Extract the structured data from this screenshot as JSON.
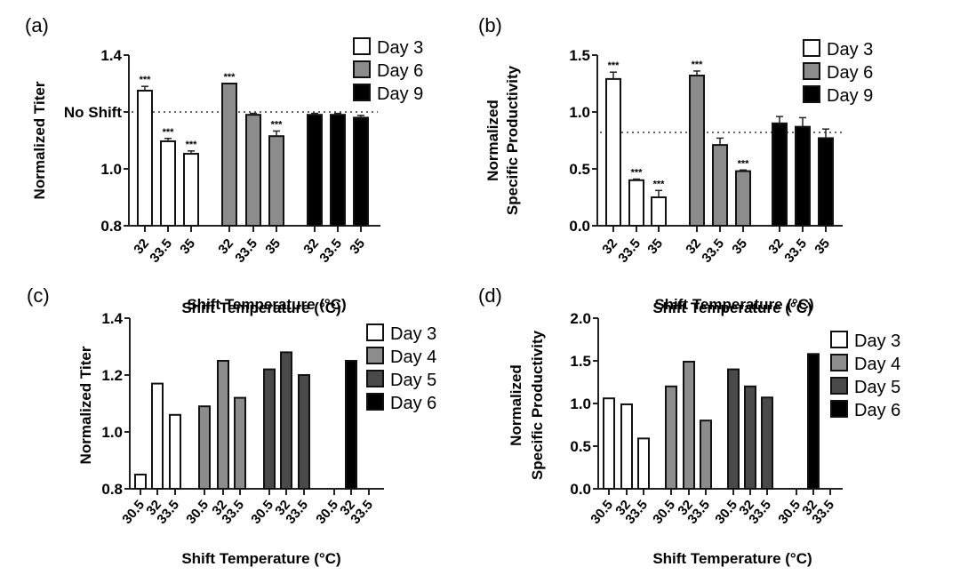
{
  "chart_data": [
    {
      "id": "a",
      "panel_label": "(a)",
      "type": "bar",
      "ylabel": "Normalized Titer",
      "xlabel": "Shift Temperature (°C)",
      "ylim": [
        0.8,
        1.4
      ],
      "yticks": [
        "0.8",
        "1.0",
        "No Shift",
        "1.4"
      ],
      "ytick_values": [
        0.8,
        1.0,
        1.2,
        1.4
      ],
      "reference_line": {
        "label": "No Shift",
        "value": 1.2
      },
      "categories": [
        "32",
        "33.5",
        "35"
      ],
      "series": [
        {
          "name": "Day 3",
          "color": "#ffffff",
          "values": [
            1.275,
            1.097,
            1.053
          ],
          "errors": [
            0.015,
            0.01,
            0.01
          ],
          "significance": [
            "***",
            "***",
            "***"
          ]
        },
        {
          "name": "Day 6",
          "color": "#8c8c8c",
          "values": [
            1.3,
            1.19,
            1.115
          ],
          "errors": [
            0.0,
            0.005,
            0.018
          ],
          "significance": [
            "***",
            "",
            "***"
          ]
        },
        {
          "name": "Day 9",
          "color": "#000000",
          "values": [
            1.19,
            1.19,
            1.18
          ],
          "errors": [
            0.005,
            0.005,
            0.008
          ],
          "significance": [
            "",
            "",
            ""
          ]
        }
      ],
      "legend": "top-right"
    },
    {
      "id": "b",
      "panel_label": "(b)",
      "type": "bar",
      "ylabel": [
        "Normalized",
        "Specific Productivity"
      ],
      "xlabel": "Shift Temperature (°C)",
      "ylim": [
        0.0,
        1.5
      ],
      "yticks": [
        "0.0",
        "0.5",
        "1.0",
        "1.5"
      ],
      "ytick_values": [
        0.0,
        0.5,
        1.0,
        1.5
      ],
      "reference_line": {
        "label": "No Shift",
        "value": 0.82
      },
      "categories": [
        "32",
        "33.5",
        "35"
      ],
      "series": [
        {
          "name": "Day 3",
          "color": "#ffffff",
          "values": [
            1.29,
            0.4,
            0.25
          ],
          "errors": [
            0.06,
            0.01,
            0.06
          ],
          "significance": [
            "***",
            "***",
            "***"
          ]
        },
        {
          "name": "Day 6",
          "color": "#8c8c8c",
          "values": [
            1.32,
            0.71,
            0.48
          ],
          "errors": [
            0.04,
            0.06,
            0.01
          ],
          "significance": [
            "***",
            "",
            "***"
          ]
        },
        {
          "name": "Day 9",
          "color": "#000000",
          "values": [
            0.9,
            0.87,
            0.77
          ],
          "errors": [
            0.06,
            0.08,
            0.08
          ],
          "significance": [
            "",
            "",
            ""
          ]
        }
      ],
      "legend": "top-right"
    },
    {
      "id": "c",
      "panel_label": "(c)",
      "type": "bar",
      "ylabel": "Normalized Titer",
      "xlabel": "Shift Temperature (°C)",
      "ylim": [
        0.8,
        1.4
      ],
      "yticks": [
        "0.8",
        "1.0",
        "1.2",
        "1.4"
      ],
      "ytick_values": [
        0.8,
        1.0,
        1.2,
        1.4
      ],
      "categories": [
        "30.5",
        "32",
        "33.5"
      ],
      "series": [
        {
          "name": "Day 3",
          "color": "#ffffff",
          "values": [
            0.85,
            1.17,
            1.06
          ]
        },
        {
          "name": "Day 4",
          "color": "#8c8c8c",
          "values": [
            1.09,
            1.25,
            1.12
          ]
        },
        {
          "name": "Day 5",
          "color": "#4a4a4a",
          "values": [
            1.22,
            1.28,
            1.2
          ]
        },
        {
          "name": "Day 6",
          "color": "#000000",
          "values": [
            null,
            1.25,
            null
          ]
        }
      ],
      "legend": "right"
    },
    {
      "id": "d",
      "panel_label": "(d)",
      "type": "bar",
      "ylabel": [
        "Normalized",
        "Specific Productivity"
      ],
      "xlabel": "Shift Temperature (°C)",
      "ylim": [
        0.0,
        2.0
      ],
      "yticks": [
        "0.0",
        "0.5",
        "1.0",
        "1.5",
        "2.0"
      ],
      "ytick_values": [
        0.0,
        0.5,
        1.0,
        1.5,
        2.0
      ],
      "categories": [
        "30.5",
        "32",
        "33.5"
      ],
      "series": [
        {
          "name": "Day 3",
          "color": "#ffffff",
          "values": [
            1.06,
            0.99,
            0.59
          ]
        },
        {
          "name": "Day 4",
          "color": "#8c8c8c",
          "values": [
            1.2,
            1.49,
            0.8
          ]
        },
        {
          "name": "Day 5",
          "color": "#4a4a4a",
          "values": [
            1.4,
            1.2,
            1.07
          ]
        },
        {
          "name": "Day 6",
          "color": "#000000",
          "values": [
            null,
            1.58,
            null
          ]
        }
      ],
      "legend": "right"
    }
  ]
}
